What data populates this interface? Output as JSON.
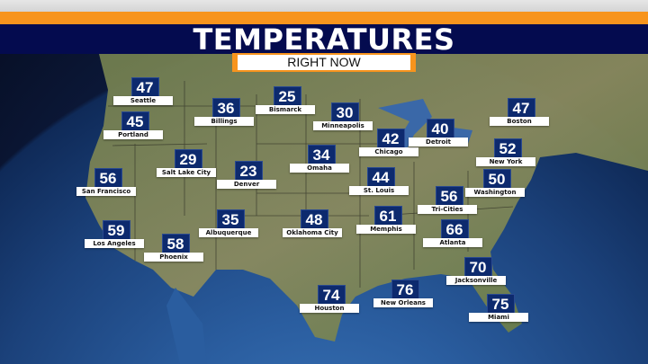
{
  "header": {
    "title": "TEMPERATURES",
    "subtitle": "RIGHT NOW"
  },
  "colors": {
    "accent": "#f7941d",
    "banner": "#040b4f",
    "value_box": "#0d2a6e"
  },
  "cities": [
    {
      "name": "Seattle",
      "temp": "47"
    },
    {
      "name": "Portland",
      "temp": "45"
    },
    {
      "name": "San Francisco",
      "temp": "56"
    },
    {
      "name": "Los Angeles",
      "temp": "59"
    },
    {
      "name": "Phoenix",
      "temp": "58"
    },
    {
      "name": "Billings",
      "temp": "36"
    },
    {
      "name": "Bismarck",
      "temp": "25"
    },
    {
      "name": "Salt Lake City",
      "temp": "29"
    },
    {
      "name": "Denver",
      "temp": "23"
    },
    {
      "name": "Albuquerque",
      "temp": "35"
    },
    {
      "name": "Minneapolis",
      "temp": "30"
    },
    {
      "name": "Omaha",
      "temp": "34"
    },
    {
      "name": "Oklahoma City",
      "temp": "48"
    },
    {
      "name": "Houston",
      "temp": "74"
    },
    {
      "name": "Chicago",
      "temp": "42"
    },
    {
      "name": "St. Louis",
      "temp": "44"
    },
    {
      "name": "Memphis",
      "temp": "61"
    },
    {
      "name": "New Orleans",
      "temp": "76"
    },
    {
      "name": "Detroit",
      "temp": "40"
    },
    {
      "name": "Tri-Cities",
      "temp": "56"
    },
    {
      "name": "Atlanta",
      "temp": "66"
    },
    {
      "name": "Jacksonville",
      "temp": "70"
    },
    {
      "name": "Miami",
      "temp": "75"
    },
    {
      "name": "Boston",
      "temp": "47"
    },
    {
      "name": "New York",
      "temp": "52"
    },
    {
      "name": "Washington",
      "temp": "50"
    }
  ]
}
